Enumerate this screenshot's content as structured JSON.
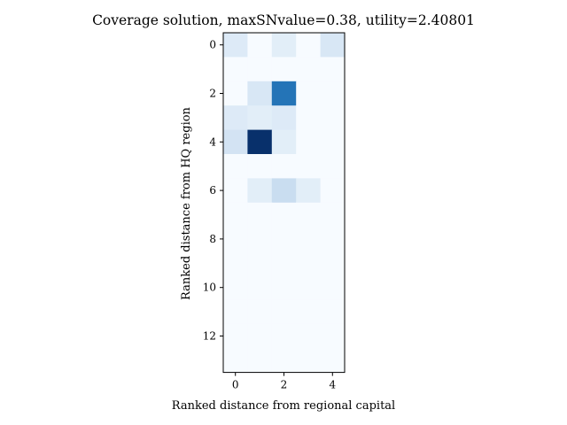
{
  "chart_data": {
    "type": "heatmap",
    "title": "Coverage solution, maxSNvalue=0.38, utility=2.40801",
    "xlabel": "Ranked distance from regional capital",
    "ylabel": "Ranked distance from HQ region",
    "colormap": "Blues",
    "xlim": [
      -0.5,
      4.5
    ],
    "ylim": [
      13.5,
      -0.5
    ],
    "x_ticks": [
      0,
      2,
      4
    ],
    "y_ticks": [
      0,
      2,
      4,
      6,
      8,
      10,
      12
    ],
    "vmin": 0,
    "vmax": 0.38,
    "n_rows": 14,
    "n_cols": 5,
    "values": [
      [
        0.05,
        0,
        0.04,
        0,
        0.06
      ],
      [
        0,
        0,
        0,
        0,
        0
      ],
      [
        0,
        0.06,
        0.28,
        0,
        0
      ],
      [
        0.05,
        0.04,
        0.05,
        0,
        0
      ],
      [
        0.07,
        0.38,
        0.04,
        0,
        0
      ],
      [
        0,
        0,
        0,
        0,
        0
      ],
      [
        0,
        0.04,
        0.09,
        0.04,
        0
      ],
      [
        0,
        0,
        0,
        0,
        0
      ],
      [
        0,
        0,
        0,
        0,
        0
      ],
      [
        0,
        0,
        0,
        0,
        0
      ],
      [
        0,
        0,
        0,
        0,
        0
      ],
      [
        0,
        0,
        0,
        0,
        0
      ],
      [
        0,
        0,
        0,
        0,
        0
      ],
      [
        0,
        0,
        0,
        0,
        0
      ]
    ]
  }
}
